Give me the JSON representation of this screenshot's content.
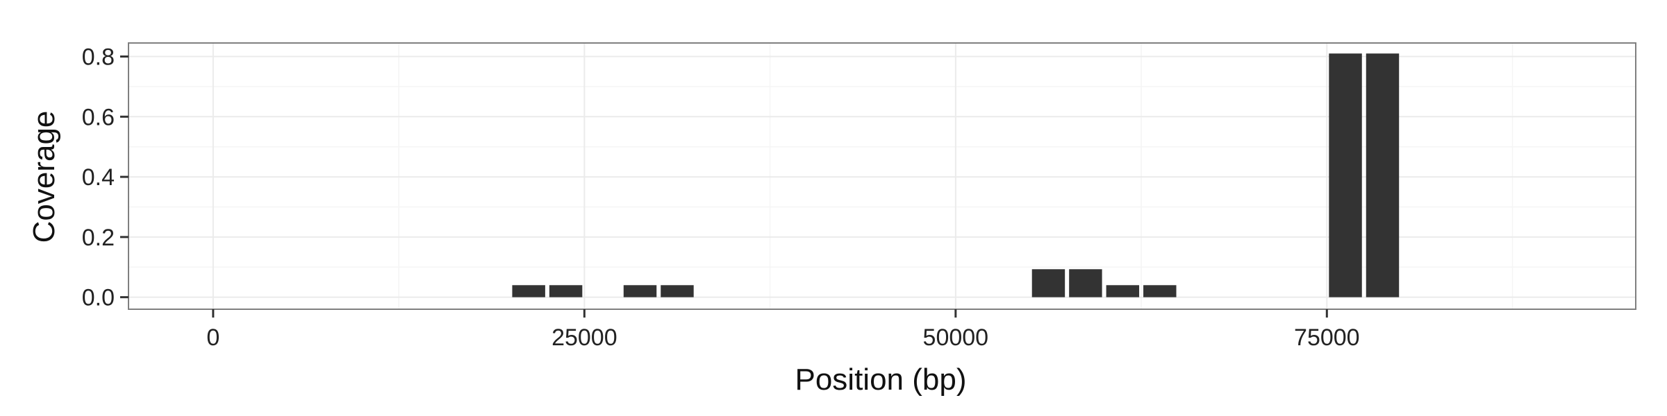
{
  "chart_data": {
    "type": "bar",
    "title": "",
    "xlabel": "Position (bp)",
    "ylabel": "Coverage",
    "xlim": [
      -5700,
      95800
    ],
    "ylim": [
      -0.04,
      0.845
    ],
    "x_ticks": [
      0,
      25000,
      50000,
      75000
    ],
    "x_tick_labels": [
      "0",
      "25000",
      "50000",
      "75000"
    ],
    "y_ticks": [
      0.0,
      0.2,
      0.4,
      0.6,
      0.8
    ],
    "y_tick_labels": [
      "0.0",
      "0.2",
      "0.4",
      "0.6",
      "0.8"
    ],
    "bar_width": 2500,
    "x": [
      22500,
      25000,
      30000,
      32500,
      57500,
      60000,
      62500,
      65000,
      77500,
      80000
    ],
    "values": [
      0.04,
      0.04,
      0.04,
      0.04,
      0.093,
      0.093,
      0.04,
      0.04,
      0.81,
      0.81
    ],
    "grid": true,
    "legend": "none",
    "colors": {
      "bar": "#333333",
      "panel_border": "#7f7f7f",
      "grid_major": "#ebebeb",
      "grid_minor": "#f5f5f5",
      "tick": "#333333"
    }
  }
}
